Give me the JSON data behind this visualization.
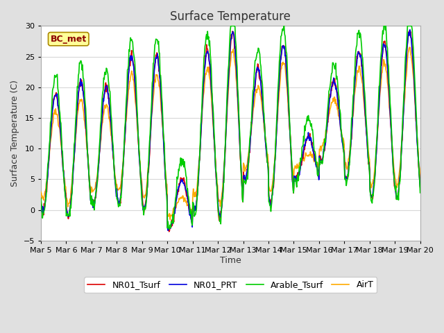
{
  "title": "Surface Temperature",
  "ylabel": "Surface Temperature (C)",
  "xlabel": "Time",
  "annotation": "BC_met",
  "ylim": [
    -5,
    30
  ],
  "yticks": [
    -5,
    0,
    5,
    10,
    15,
    20,
    25,
    30
  ],
  "xtick_labels": [
    "Mar 5",
    "Mar 6",
    "Mar 7",
    "Mar 8",
    "Mar 9",
    "Mar 10",
    "Mar 11",
    "Mar 12",
    "Mar 13",
    "Mar 14",
    "Mar 15",
    "Mar 16",
    "Mar 17",
    "Mar 18",
    "Mar 19",
    "Mar 20"
  ],
  "series_colors": [
    "#dd0000",
    "#0000dd",
    "#00cc00",
    "#ffaa00"
  ],
  "series_labels": [
    "NR01_Tsurf",
    "NR01_PRT",
    "Arable_Tsurf",
    "AirT"
  ],
  "background_color": "#e0e0e0",
  "plot_bg_color": "#ffffff",
  "grid_color": "#d8d8d8",
  "title_fontsize": 12,
  "label_fontsize": 9,
  "tick_fontsize": 8,
  "legend_fontsize": 9,
  "line_width": 1.2
}
